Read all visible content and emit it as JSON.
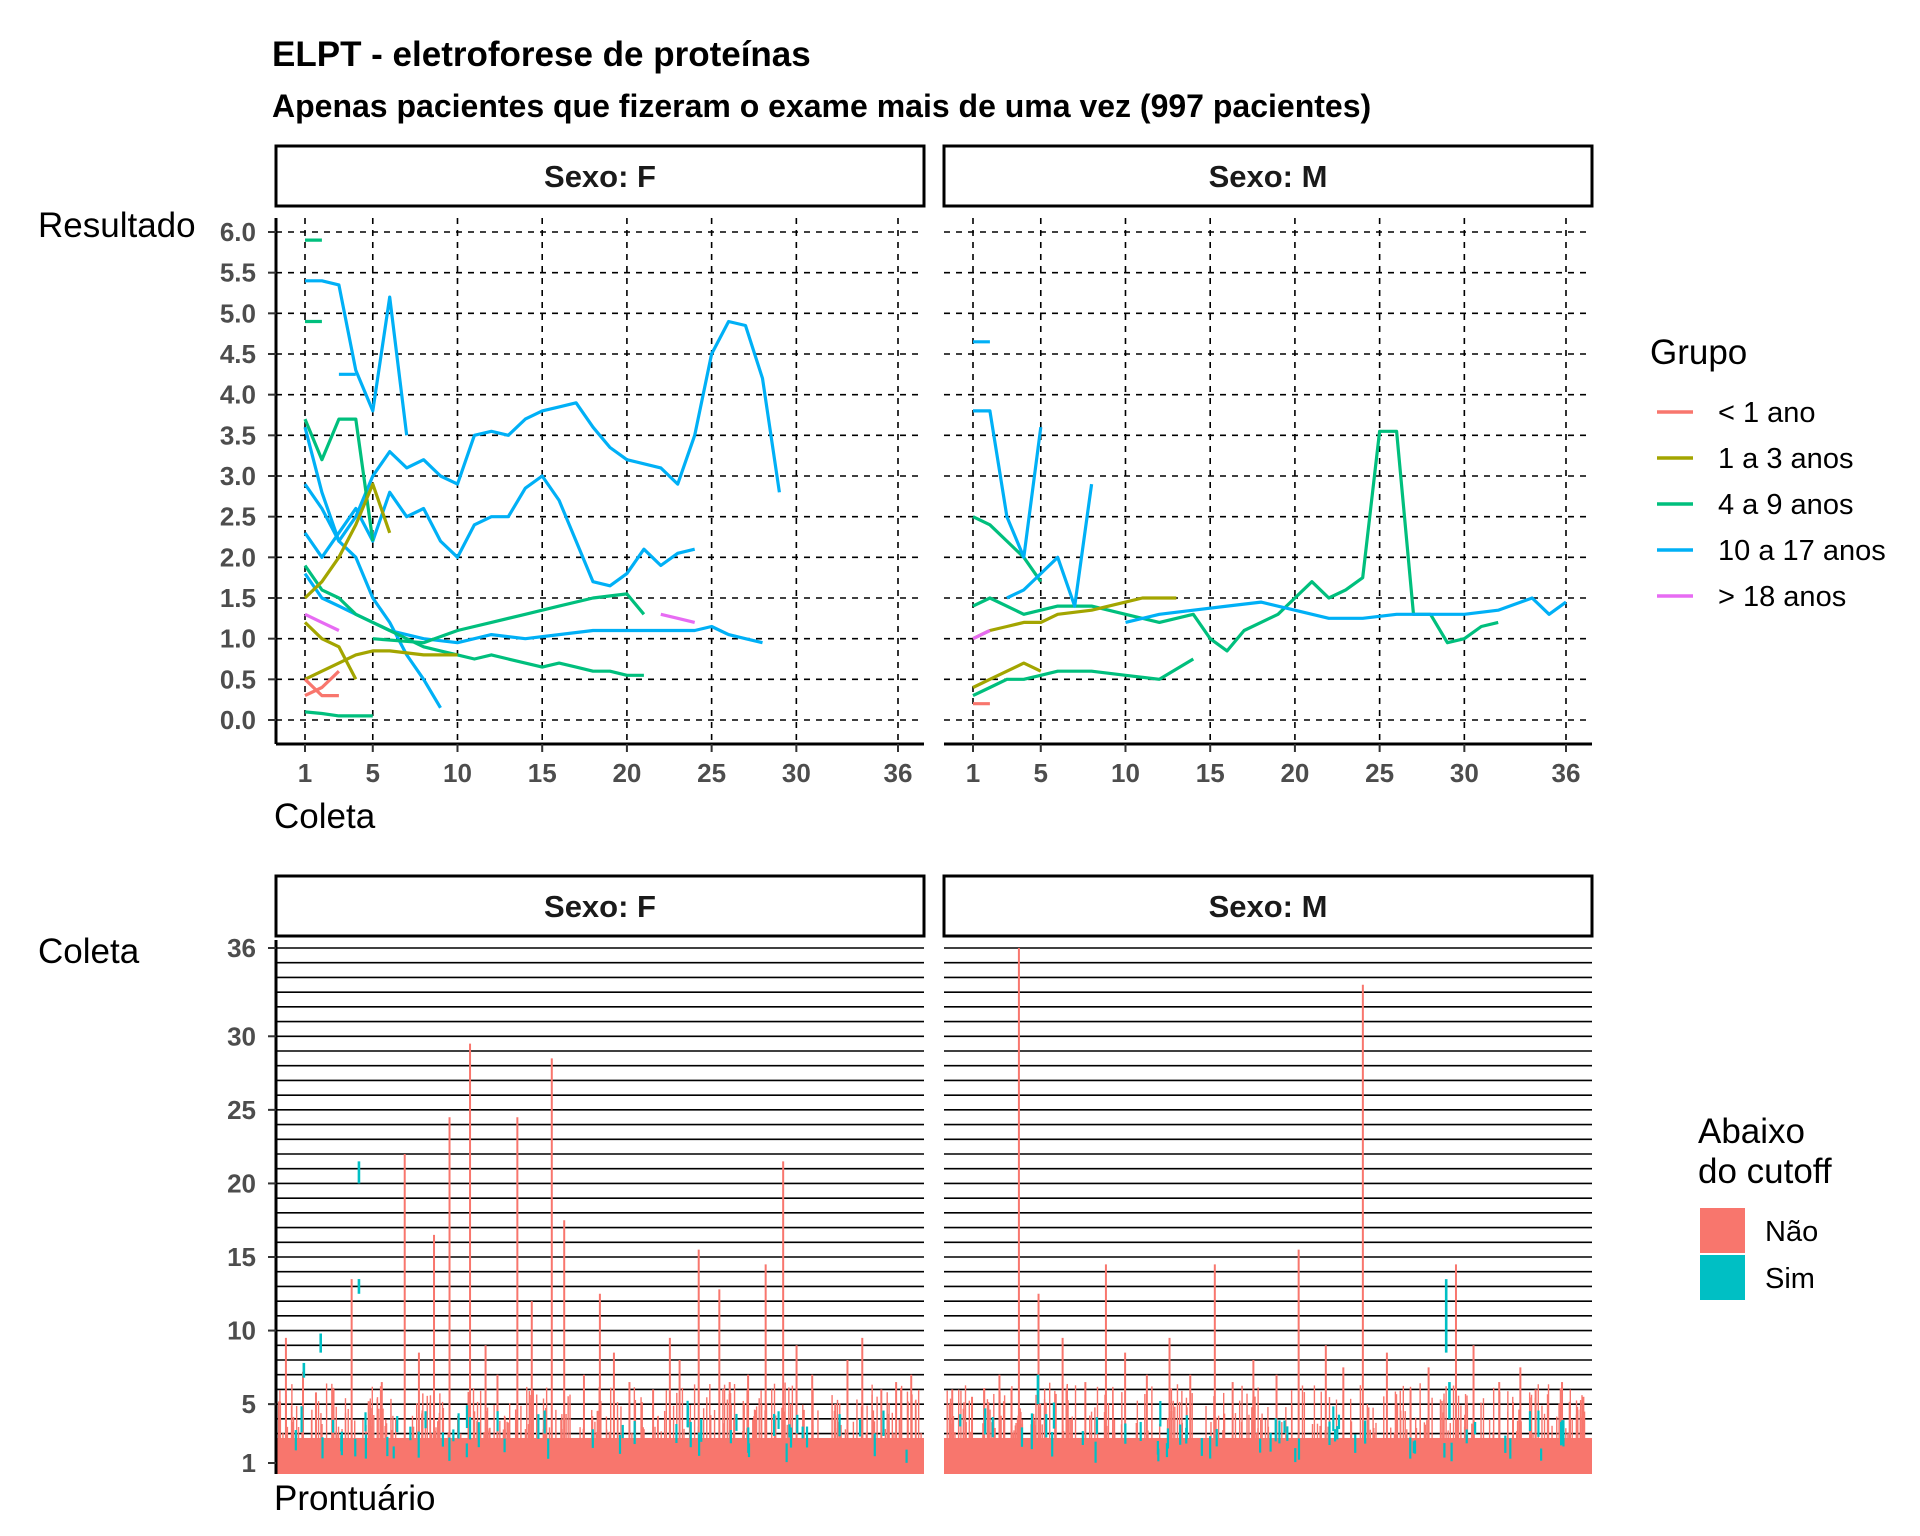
{
  "title": "ELPT - eletroforese de proteínas",
  "subtitle": "Apenas pacientes que fizeram o exame mais de uma vez (997 pacientes)",
  "chart_data": [
    {
      "type": "line",
      "facets": [
        "Sexo: F",
        "Sexo: M"
      ],
      "xlabel": "Coleta",
      "ylabel": "Resultado",
      "x_ticks": [
        1,
        5,
        10,
        15,
        20,
        25,
        30,
        36
      ],
      "y_ticks": [
        "0.0",
        "0.5",
        "1.0",
        "1.5",
        "2.0",
        "2.5",
        "3.0",
        "3.5",
        "4.0",
        "4.5",
        "5.0",
        "5.5",
        "6.0"
      ],
      "xlim": [
        1,
        36
      ],
      "ylim": [
        0,
        6
      ],
      "grid": "dashed",
      "legend": {
        "title": "Grupo",
        "position": "right",
        "entries": [
          {
            "label": "< 1 ano",
            "color": "#F8766D"
          },
          {
            "label": "1 a 3 anos",
            "color": "#A3A500"
          },
          {
            "label": "4 a 9 anos",
            "color": "#00BF7D"
          },
          {
            "label": "10 a 17 anos",
            "color": "#00B0F6"
          },
          {
            "label": "> 18 anos",
            "color": "#E76BF3"
          }
        ]
      },
      "series": [
        {
          "facet": "Sexo: F",
          "group": "10 a 17 anos",
          "x": [
            1,
            2,
            3,
            4,
            5,
            6,
            7,
            8,
            9,
            10,
            11,
            12,
            13,
            14,
            15,
            16,
            17,
            18,
            19,
            20,
            21,
            22,
            23,
            24,
            25,
            26,
            27,
            28,
            29
          ],
          "y": [
            2.9,
            2.6,
            2.2,
            2.5,
            3.0,
            3.3,
            3.1,
            3.2,
            3.0,
            2.9,
            3.5,
            3.55,
            3.5,
            3.7,
            3.8,
            3.85,
            3.9,
            3.6,
            3.35,
            3.2,
            3.15,
            3.1,
            2.9,
            3.5,
            4.5,
            4.9,
            4.85,
            4.2,
            2.8
          ]
        },
        {
          "facet": "Sexo: F",
          "group": "10 a 17 anos",
          "x": [
            1,
            2,
            4,
            5,
            6,
            7,
            8,
            9,
            10,
            11,
            12,
            13,
            14,
            15,
            16,
            17,
            18,
            19,
            20,
            21,
            22,
            23,
            24
          ],
          "y": [
            2.3,
            2.0,
            2.6,
            2.2,
            2.8,
            2.5,
            2.6,
            2.2,
            2.0,
            2.4,
            2.5,
            2.5,
            2.85,
            3.0,
            2.7,
            2.2,
            1.7,
            1.65,
            1.8,
            2.1,
            1.9,
            2.05,
            2.1
          ]
        },
        {
          "facet": "Sexo: F",
          "group": "10 a 17 anos",
          "x": [
            1,
            2,
            3,
            4,
            5,
            6,
            8,
            10,
            12,
            14,
            16,
            18,
            20,
            22,
            24,
            25,
            26,
            27,
            28
          ],
          "y": [
            1.8,
            1.5,
            1.4,
            1.3,
            1.2,
            1.1,
            1.0,
            0.95,
            1.05,
            1.0,
            1.05,
            1.1,
            1.1,
            1.1,
            1.1,
            1.15,
            1.05,
            1.0,
            0.95
          ]
        },
        {
          "facet": "Sexo: F",
          "group": "10 a 17 anos",
          "x": [
            1,
            2,
            3,
            4,
            5,
            6,
            7
          ],
          "y": [
            5.4,
            5.4,
            5.35,
            4.3,
            3.8,
            5.2,
            3.5
          ]
        },
        {
          "facet": "Sexo: F",
          "group": "10 a 17 anos",
          "x": [
            1,
            2,
            3,
            4,
            5,
            6,
            7,
            8,
            9
          ],
          "y": [
            3.6,
            2.8,
            2.2,
            2.0,
            1.5,
            1.2,
            0.8,
            0.5,
            0.15
          ]
        },
        {
          "facet": "Sexo: F",
          "group": "10 a 17 anos",
          "x": [
            3,
            4
          ],
          "y": [
            4.25,
            4.25
          ]
        },
        {
          "facet": "Sexo: F",
          "group": "4 a 9 anos",
          "x": [
            1,
            2
          ],
          "y": [
            5.9,
            5.9
          ]
        },
        {
          "facet": "Sexo: F",
          "group": "4 a 9 anos",
          "x": [
            1,
            2
          ],
          "y": [
            4.9,
            4.9
          ]
        },
        {
          "facet": "Sexo: F",
          "group": "4 a 9 anos",
          "x": [
            1,
            2,
            3,
            4,
            5,
            6,
            7,
            8,
            9,
            10,
            11,
            12,
            13,
            14,
            15,
            16,
            17,
            18,
            19,
            20,
            21
          ],
          "y": [
            1.9,
            1.6,
            1.5,
            1.3,
            1.2,
            1.1,
            1.0,
            0.9,
            0.85,
            0.8,
            0.75,
            0.8,
            0.75,
            0.7,
            0.65,
            0.7,
            0.65,
            0.6,
            0.6,
            0.55,
            0.55
          ]
        },
        {
          "facet": "Sexo: F",
          "group": "4 a 9 anos",
          "x": [
            1,
            2,
            3,
            4,
            5
          ],
          "y": [
            3.7,
            3.2,
            3.7,
            3.7,
            2.2
          ]
        },
        {
          "facet": "Sexo: F",
          "group": "4 a 9 anos",
          "x": [
            5,
            8,
            10,
            12,
            14,
            16,
            18,
            20,
            21
          ],
          "y": [
            1.0,
            0.95,
            1.1,
            1.2,
            1.3,
            1.4,
            1.5,
            1.55,
            1.3
          ]
        },
        {
          "facet": "Sexo: F",
          "group": "4 a 9 anos",
          "x": [
            1,
            2,
            3,
            4,
            5
          ],
          "y": [
            0.1,
            0.08,
            0.05,
            0.05,
            0.05
          ]
        },
        {
          "facet": "Sexo: F",
          "group": "1 a 3 anos",
          "x": [
            1,
            2,
            3,
            4,
            5,
            6
          ],
          "y": [
            1.5,
            1.7,
            2.0,
            2.4,
            2.9,
            2.3
          ]
        },
        {
          "facet": "Sexo: F",
          "group": "1 a 3 anos",
          "x": [
            1,
            2,
            3,
            4,
            5,
            6,
            8,
            10
          ],
          "y": [
            0.5,
            0.6,
            0.7,
            0.8,
            0.85,
            0.85,
            0.8,
            0.8
          ]
        },
        {
          "facet": "Sexo: F",
          "group": "1 a 3 anos",
          "x": [
            1,
            2,
            3,
            4
          ],
          "y": [
            1.2,
            1.0,
            0.9,
            0.5
          ]
        },
        {
          "facet": "Sexo: F",
          "group": "< 1 ano",
          "x": [
            1,
            2,
            3
          ],
          "y": [
            0.3,
            0.4,
            0.6
          ]
        },
        {
          "facet": "Sexo: F",
          "group": "< 1 ano",
          "x": [
            1,
            2,
            3
          ],
          "y": [
            0.5,
            0.3,
            0.3
          ]
        },
        {
          "facet": "Sexo: F",
          "group": "> 18 anos",
          "x": [
            1,
            2,
            3
          ],
          "y": [
            1.3,
            1.2,
            1.1
          ]
        },
        {
          "facet": "Sexo: F",
          "group": "> 18 anos",
          "x": [
            22,
            23,
            24
          ],
          "y": [
            1.3,
            1.25,
            1.2
          ]
        },
        {
          "facet": "Sexo: M",
          "group": "4 a 9 anos",
          "x": [
            1,
            2,
            4,
            6,
            8,
            10,
            12,
            14,
            15,
            16,
            17,
            18,
            19,
            20,
            21,
            22,
            23,
            24,
            25,
            26,
            27,
            28,
            29,
            30,
            31,
            32
          ],
          "y": [
            1.4,
            1.5,
            1.3,
            1.4,
            1.4,
            1.3,
            1.2,
            1.3,
            1.0,
            0.85,
            1.1,
            1.2,
            1.3,
            1.5,
            1.7,
            1.5,
            1.6,
            1.75,
            3.55,
            3.55,
            1.3,
            1.3,
            0.95,
            1.0,
            1.15,
            1.2
          ]
        },
        {
          "facet": "Sexo: M",
          "group": "4 a 9 anos",
          "x": [
            1,
            2,
            3,
            4,
            5
          ],
          "y": [
            2.5,
            2.4,
            2.2,
            2.0,
            1.7
          ]
        },
        {
          "facet": "Sexo: M",
          "group": "4 a 9 anos",
          "x": [
            1,
            2,
            3,
            4,
            5,
            6,
            8,
            10,
            12,
            14
          ],
          "y": [
            0.3,
            0.4,
            0.5,
            0.5,
            0.55,
            0.6,
            0.6,
            0.55,
            0.5,
            0.75
          ]
        },
        {
          "facet": "Sexo: M",
          "group": "10 a 17 anos",
          "x": [
            1,
            2,
            3,
            4,
            5
          ],
          "y": [
            3.8,
            3.8,
            2.5,
            2.0,
            3.6
          ]
        },
        {
          "facet": "Sexo: M",
          "group": "10 a 17 anos",
          "x": [
            1,
            2
          ],
          "y": [
            4.65,
            4.65
          ]
        },
        {
          "facet": "Sexo: M",
          "group": "10 a 17 anos",
          "x": [
            3,
            4,
            5,
            6,
            7,
            8
          ],
          "y": [
            1.5,
            1.6,
            1.8,
            2.0,
            1.4,
            2.9
          ]
        },
        {
          "facet": "Sexo: M",
          "group": "10 a 17 anos",
          "x": [
            10,
            12,
            14,
            16,
            18,
            20,
            22,
            24,
            26,
            28,
            30,
            32,
            34,
            35,
            36
          ],
          "y": [
            1.2,
            1.3,
            1.35,
            1.4,
            1.45,
            1.35,
            1.25,
            1.25,
            1.3,
            1.3,
            1.3,
            1.35,
            1.5,
            1.3,
            1.45
          ]
        },
        {
          "facet": "Sexo: M",
          "group": "1 a 3 anos",
          "x": [
            1,
            2,
            3,
            4,
            5,
            6,
            8,
            10,
            11,
            12,
            13
          ],
          "y": [
            1.0,
            1.1,
            1.15,
            1.2,
            1.2,
            1.3,
            1.35,
            1.45,
            1.5,
            1.5,
            1.5
          ]
        },
        {
          "facet": "Sexo: M",
          "group": "1 a 3 anos",
          "x": [
            1,
            2,
            3,
            4,
            5
          ],
          "y": [
            0.4,
            0.5,
            0.6,
            0.7,
            0.6
          ]
        },
        {
          "facet": "Sexo: M",
          "group": "< 1 ano",
          "x": [
            1,
            2
          ],
          "y": [
            0.2,
            0.2
          ]
        },
        {
          "facet": "Sexo: M",
          "group": "> 18 anos",
          "x": [
            1,
            2
          ],
          "y": [
            1.0,
            1.1
          ]
        }
      ]
    },
    {
      "type": "bar",
      "facets": [
        "Sexo: F",
        "Sexo: M"
      ],
      "xlabel": "Prontuário",
      "ylabel": "Coleta",
      "y_ticks": [
        1,
        5,
        10,
        15,
        20,
        25,
        30,
        36
      ],
      "ylim": [
        1,
        36
      ],
      "grid": "horizontal solid lines",
      "legend": {
        "title": [
          "Abaixo",
          "do cutoff"
        ],
        "position": "right",
        "entries": [
          {
            "label": "Não",
            "color": "#F8766D"
          },
          {
            "label": "Sim",
            "color": "#00BFC4"
          }
        ]
      },
      "tall_bars": [
        {
          "facet": "Sexo: F",
          "heights": [
            9.5,
            7.2,
            5.8,
            6.0,
            13.5,
            5.2,
            6.5,
            22.0,
            8.5,
            16.5,
            24.5,
            29.5,
            9.0,
            7.0,
            24.5,
            12.0,
            28.5,
            17.5,
            7.0,
            12.5,
            8.5,
            6.5,
            6.0,
            9.5,
            8.0,
            15.5,
            12.8,
            6.5,
            7.0,
            14.5,
            21.5,
            9.0,
            7.0,
            5.0,
            8.0,
            9.5,
            6.0,
            6.5,
            7.0
          ]
        },
        {
          "facet": "Sexo: M",
          "heights": [
            6.0,
            5.5,
            7.0,
            36.0,
            12.5,
            9.5,
            6.5,
            14.5,
            8.5,
            7.0,
            9.5,
            7.0,
            14.5,
            6.5,
            8.0,
            7.0,
            15.5,
            9.0,
            7.5,
            33.5,
            8.5,
            6.0,
            7.5,
            14.5,
            9.0,
            6.5,
            7.5,
            6.0,
            6.5,
            5.5
          ]
        }
      ]
    }
  ]
}
